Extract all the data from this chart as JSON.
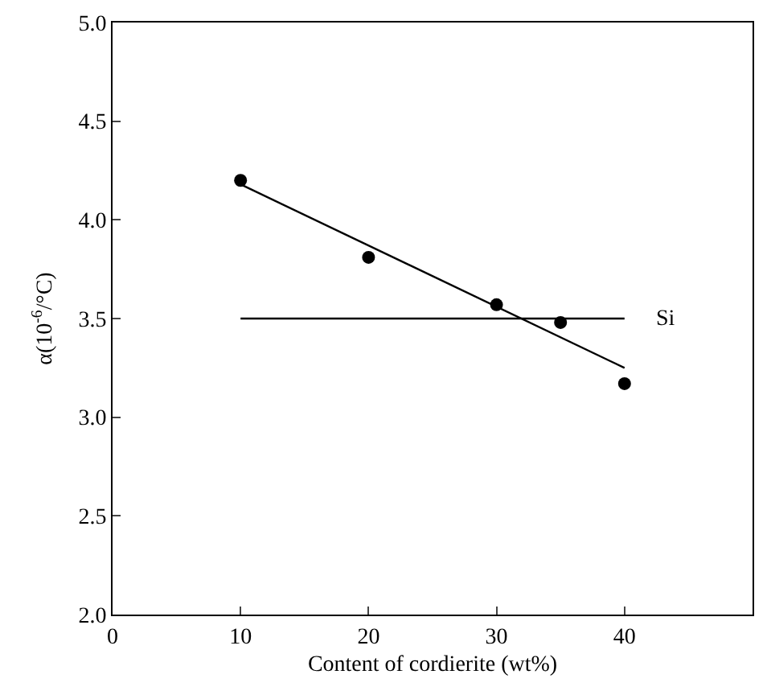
{
  "chart_data": {
    "type": "scatter",
    "xlabel": "Content of cordierite (wt%)",
    "ylabel": "α(10$^{-6}$/°C)",
    "xlim": [
      0,
      50
    ],
    "xticks": [
      0,
      10,
      20,
      30,
      40
    ],
    "ylim": [
      2.0,
      5.0
    ],
    "yticks": [
      {
        "value": 2.0,
        "label": "2.0"
      },
      {
        "value": 2.5,
        "label": "2.5"
      },
      {
        "value": 3.0,
        "label": "3.0"
      },
      {
        "value": 3.5,
        "label": "3.5"
      },
      {
        "value": 4.0,
        "label": "4.0"
      },
      {
        "value": 4.5,
        "label": "4.5"
      },
      {
        "value": 5.0,
        "label": "5.0"
      }
    ],
    "grid": false,
    "legend": false,
    "marker": "circle",
    "series": [
      {
        "color": "#000000",
        "x": [
          10,
          20,
          30,
          35,
          40
        ],
        "values": [
          4.2,
          3.81,
          3.57,
          3.48,
          3.17
        ]
      },
      {
        "type": "line",
        "color": "#000000",
        "marker": "none",
        "x": [
          10,
          40
        ],
        "values": [
          4.18,
          3.25
        ]
      },
      {
        "type": "line",
        "name": "Si",
        "color": "#000000",
        "marker": "none",
        "x": [
          10,
          40
        ],
        "values": [
          3.5,
          3.5
        ]
      }
    ]
  }
}
